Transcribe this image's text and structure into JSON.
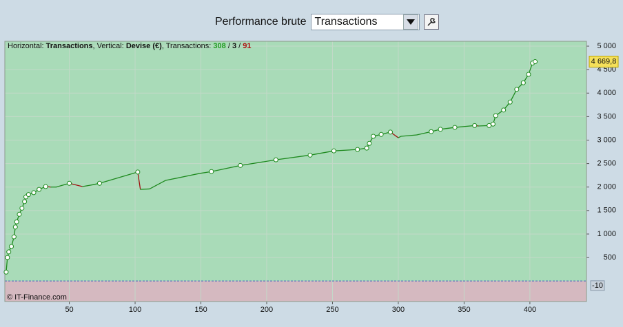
{
  "header": {
    "label": "Performance brute",
    "select": "Transactions"
  },
  "chart_data": {
    "type": "line",
    "info": {
      "h_label": "Horizontal:",
      "h_value": "Transactions",
      "v_label": ", Vertical:",
      "v_value": "Devise (€)",
      "t_label": ", Transactions:",
      "t_win": "308",
      "sep": "/",
      "t_even": "3",
      "t_loss": "91"
    },
    "watermark": "© IT-Finance.com",
    "x": [
      2,
      3,
      4,
      6,
      8,
      9,
      10,
      12,
      14,
      16,
      17,
      19,
      23,
      27,
      32,
      36,
      40,
      50,
      60,
      68,
      73,
      102,
      104,
      111,
      123,
      149,
      158,
      180,
      207,
      233,
      251,
      269,
      276,
      278,
      281,
      287,
      294,
      300,
      302,
      314,
      325,
      332,
      343,
      358,
      361,
      369,
      372,
      374,
      380,
      385,
      390,
      395,
      399,
      402,
      404
    ],
    "series": [
      {
        "name": "Transactions",
        "color": "#1e8a1e",
        "down_color": "#a01010",
        "values": [
          190,
          500,
          620,
          735,
          940,
          1150,
          1260,
          1420,
          1550,
          1690,
          1790,
          1840,
          1880,
          1950,
          2010,
          2000,
          2000,
          2080,
          2010,
          2050,
          2080,
          2320,
          1950,
          1960,
          2140,
          2290,
          2330,
          2460,
          2580,
          2680,
          2770,
          2800,
          2830,
          2930,
          3080,
          3120,
          3170,
          3050,
          3080,
          3110,
          3180,
          3230,
          3270,
          3310,
          3300,
          3310,
          3340,
          3520,
          3640,
          3810,
          4080,
          4220,
          4400,
          4640,
          4669.8
        ]
      }
    ],
    "last_value_label": "4 669,8",
    "markers": [
      {
        "value": -10,
        "label": "-10"
      }
    ],
    "xlim": [
      1,
      443
    ],
    "ylim": [
      -437,
      5103
    ],
    "xticks": [
      50,
      100,
      150,
      200,
      250,
      300,
      350,
      400
    ],
    "yticks": [
      500,
      {
        "value": 1000,
        "label": "1 000"
      },
      {
        "value": 1500,
        "label": "1 500"
      },
      {
        "value": 2000,
        "label": "2 000"
      },
      {
        "value": 2500,
        "label": "2 500"
      },
      {
        "value": 3000,
        "label": "3 000"
      },
      {
        "value": 3500,
        "label": "3 500"
      },
      {
        "value": 4000,
        "label": "4 000"
      },
      {
        "value": 4500,
        "label": "4 500"
      },
      {
        "value": 5000,
        "label": "5 000"
      }
    ],
    "grid": true,
    "pos_color": "#a9dbb8",
    "neg_color": "#d5b9c0"
  }
}
